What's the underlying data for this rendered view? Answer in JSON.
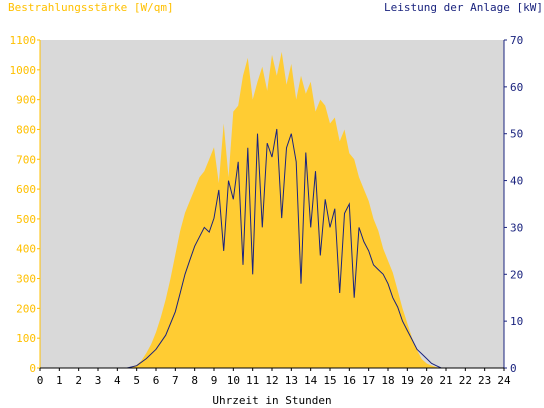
{
  "chart_data": {
    "type": "area",
    "left_axis_label": "Bestrahlungsstärke [W/qm]",
    "right_axis_label": "Leistung der Anlage [kW]",
    "xlabel": "Uhrzeit in Stunden",
    "x_ticks": [
      "0",
      "1",
      "2",
      "3",
      "4",
      "5",
      "6",
      "7",
      "8",
      "9",
      "10",
      "11",
      "12",
      "13",
      "14",
      "15",
      "16",
      "17",
      "18",
      "19",
      "20",
      "21",
      "22",
      "23",
      "24"
    ],
    "y_left_ticks": [
      "0",
      "100",
      "200",
      "300",
      "400",
      "500",
      "600",
      "700",
      "800",
      "900",
      "1000",
      "1100"
    ],
    "y_right_ticks": [
      "0",
      "10",
      "20",
      "30",
      "40",
      "50",
      "60",
      "70"
    ],
    "xlim": [
      0,
      24
    ],
    "ylim_left": [
      0,
      1100
    ],
    "ylim_right": [
      0,
      70
    ],
    "grid": false,
    "colors": {
      "plot_background": "#d9d9d9",
      "irradiance": "#ffcc33",
      "power": "#1a237e",
      "left_axis_text": "#ffc000",
      "right_axis_text": "#1a237e"
    },
    "series": [
      {
        "name": "Bestrahlungsstärke [W/qm]",
        "axis": "left",
        "style": "area",
        "x": [
          0,
          4.5,
          5.0,
          5.25,
          5.5,
          5.75,
          6.0,
          6.25,
          6.5,
          6.75,
          7.0,
          7.25,
          7.5,
          7.75,
          8.0,
          8.25,
          8.5,
          8.75,
          9.0,
          9.25,
          9.5,
          9.75,
          10.0,
          10.25,
          10.5,
          10.75,
          11.0,
          11.25,
          11.5,
          11.75,
          12.0,
          12.25,
          12.5,
          12.75,
          13.0,
          13.25,
          13.5,
          13.75,
          14.0,
          14.25,
          14.5,
          14.75,
          15.0,
          15.25,
          15.5,
          15.75,
          16.0,
          16.25,
          16.5,
          16.75,
          17.0,
          17.25,
          17.5,
          17.75,
          18.0,
          18.25,
          18.5,
          18.75,
          19.0,
          19.25,
          19.5,
          19.75,
          20.0,
          20.25,
          20.5,
          20.75,
          21.0,
          24
        ],
        "y": [
          0,
          0,
          10,
          25,
          50,
          80,
          120,
          170,
          230,
          300,
          380,
          460,
          520,
          560,
          600,
          640,
          660,
          700,
          740,
          620,
          820,
          640,
          860,
          880,
          980,
          1040,
          900,
          960,
          1010,
          930,
          1050,
          980,
          1060,
          950,
          1020,
          900,
          980,
          920,
          960,
          860,
          900,
          880,
          820,
          840,
          760,
          800,
          720,
          700,
          640,
          600,
          560,
          500,
          460,
          400,
          360,
          320,
          260,
          200,
          150,
          100,
          60,
          30,
          15,
          8,
          3,
          0,
          0,
          0
        ]
      },
      {
        "name": "Leistung der Anlage [kW]",
        "axis": "right",
        "style": "line",
        "x": [
          0,
          4.5,
          5.0,
          5.5,
          6.0,
          6.5,
          7.0,
          7.25,
          7.5,
          7.75,
          8.0,
          8.25,
          8.5,
          8.75,
          9.0,
          9.25,
          9.5,
          9.75,
          10.0,
          10.25,
          10.5,
          10.75,
          11.0,
          11.25,
          11.5,
          11.75,
          12.0,
          12.25,
          12.5,
          12.75,
          13.0,
          13.25,
          13.5,
          13.75,
          14.0,
          14.25,
          14.5,
          14.75,
          15.0,
          15.25,
          15.5,
          15.75,
          16.0,
          16.25,
          16.5,
          16.75,
          17.0,
          17.25,
          17.5,
          17.75,
          18.0,
          18.25,
          18.5,
          18.75,
          19.0,
          19.25,
          19.5,
          19.75,
          20.0,
          20.25,
          20.5,
          20.75,
          21.0,
          24
        ],
        "y": [
          0,
          0,
          0.5,
          2,
          4,
          7,
          12,
          16,
          20,
          23,
          26,
          28,
          30,
          29,
          32,
          38,
          25,
          40,
          36,
          44,
          22,
          47,
          20,
          50,
          30,
          48,
          45,
          51,
          32,
          47,
          50,
          44,
          18,
          46,
          30,
          42,
          24,
          36,
          30,
          34,
          16,
          33,
          35,
          15,
          30,
          27,
          25,
          22,
          21,
          20,
          18,
          15,
          13,
          10,
          8,
          6,
          4,
          3,
          2,
          1,
          0.5,
          0,
          0,
          0
        ]
      }
    ]
  }
}
